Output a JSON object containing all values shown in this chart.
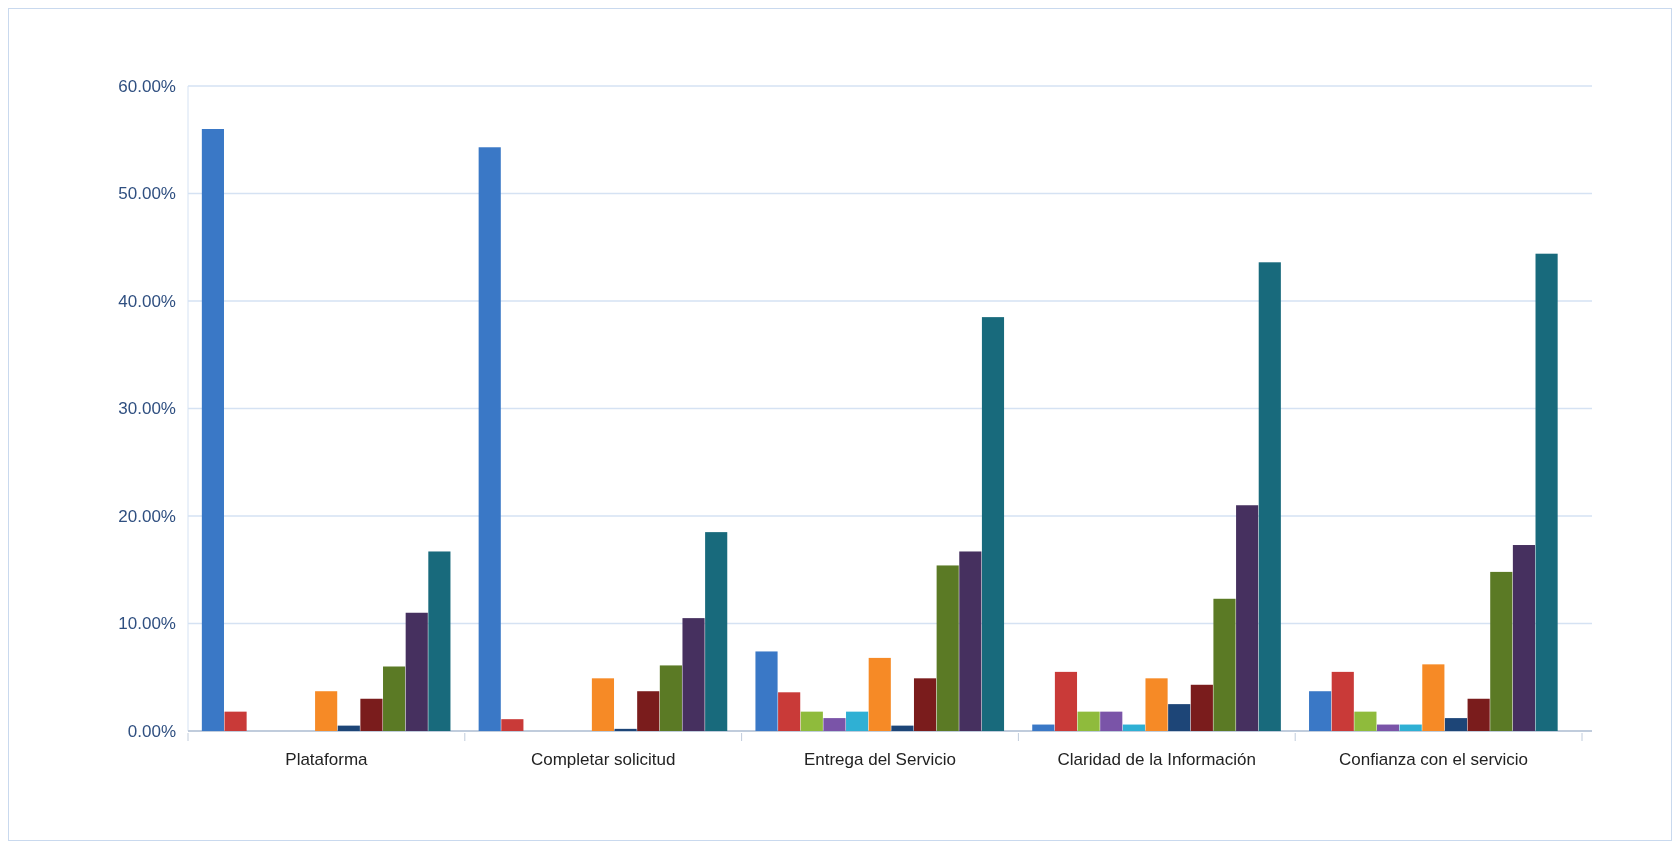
{
  "chart_data": {
    "type": "bar",
    "categories": [
      "Plataforma",
      "Completar solicitud",
      "Entrega del Servicio",
      "Claridad de la Información",
      "Confianza con el servicio"
    ],
    "series": [
      {
        "color": "#3a78c6",
        "values": [
          56,
          54.3,
          7.4,
          0.6,
          3.7
        ]
      },
      {
        "color": "#c93a38",
        "values": [
          1.8,
          1.1,
          3.6,
          5.5,
          5.5
        ]
      },
      {
        "color": "#8fbb3c",
        "values": [
          0,
          0,
          1.8,
          1.8,
          1.8
        ]
      },
      {
        "color": "#7a54a8",
        "values": [
          0,
          0,
          1.2,
          1.8,
          0.6
        ]
      },
      {
        "color": "#2fb0d4",
        "values": [
          0,
          0,
          1.8,
          0.6,
          0.6
        ]
      },
      {
        "color": "#f68a26",
        "values": [
          3.7,
          4.9,
          6.8,
          4.9,
          6.2
        ]
      },
      {
        "color": "#1d4577",
        "values": [
          0.5,
          0.2,
          0.5,
          2.5,
          1.2
        ]
      },
      {
        "color": "#7a1c1c",
        "values": [
          3,
          3.7,
          4.9,
          4.3,
          3
        ]
      },
      {
        "color": "#5b7a25",
        "values": [
          6,
          6.1,
          15.4,
          12.3,
          14.8
        ]
      },
      {
        "color": "#46305f",
        "values": [
          11,
          10.5,
          16.7,
          21,
          17.3
        ]
      },
      {
        "color": "#186a7c",
        "values": [
          16.7,
          18.5,
          38.5,
          43.6,
          44.4
        ]
      }
    ],
    "ylim": [
      0,
      60
    ],
    "yticks": [
      {
        "value": 0,
        "label": "0.00%"
      },
      {
        "value": 10,
        "label": "10.00%"
      },
      {
        "value": 20,
        "label": "20.00%"
      },
      {
        "value": 30,
        "label": "30.00%"
      },
      {
        "value": 40,
        "label": "40.00%"
      },
      {
        "value": 50,
        "label": "50.00%"
      },
      {
        "value": 60,
        "label": "60.00%"
      }
    ],
    "grid": "y"
  }
}
